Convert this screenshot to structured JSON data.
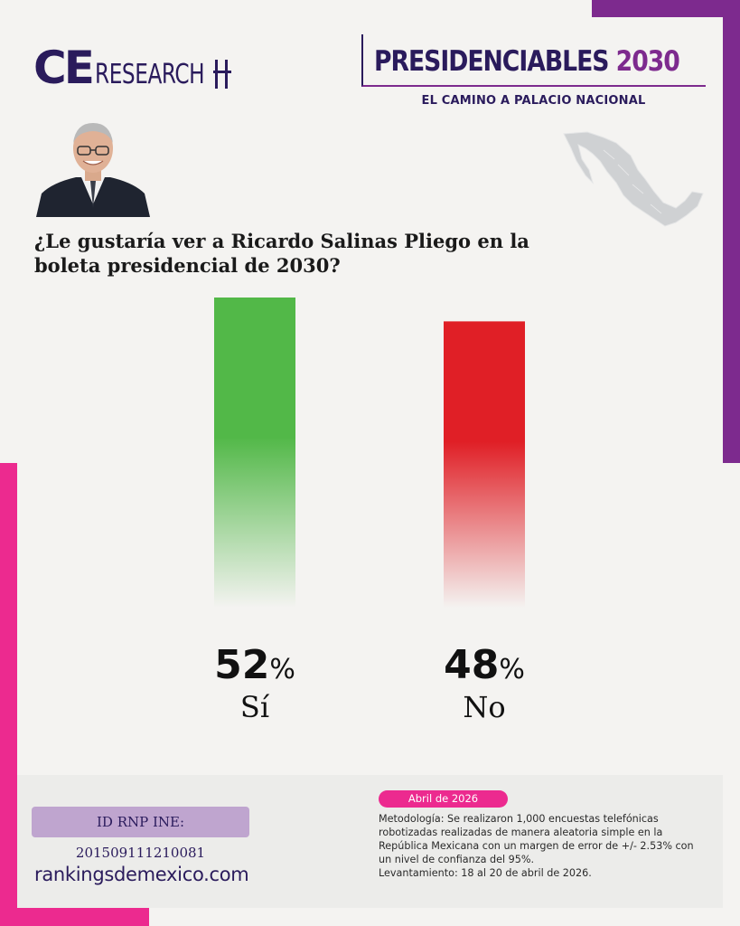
{
  "brand": {
    "logo_ce": "CE",
    "logo_research": "RESEARCH"
  },
  "header": {
    "title_main": "PRESIDENCIABLES ",
    "title_year": "2030",
    "subtitle": "EL CAMINO A PALACIO NACIONAL"
  },
  "question": "¿Le gustaría ver a Ricardo Salinas Pliego en la boleta presidencial de 2030?",
  "colors": {
    "si": "#52b848",
    "no": "#e01f26",
    "purple": "#7d2a8e",
    "pink": "#ec2a8f",
    "navy": "#2a1b5c"
  },
  "chart_data": {
    "type": "bar",
    "categories": [
      "Sí",
      "No"
    ],
    "values": [
      52,
      48
    ],
    "unit": "%",
    "ylim": [
      0,
      52
    ],
    "title": "",
    "xlabel": "",
    "ylabel": "",
    "grid": false,
    "legend": "none"
  },
  "footer": {
    "rnp_id": "ID RNP INE: 201509111210081",
    "website": "rankingsdemexico.com",
    "date_badge": "Abril de 2026",
    "methodology": "Metodología: Se realizaron 1,000 encuestas telefónicas robotizadas realizadas de manera aleatoria simple en la República Mexicana con un margen de error de +/- 2.53% con un nivel de confianza del 95%.",
    "fieldwork": "Levantamiento: 18 al 20 de abril de 2026."
  }
}
